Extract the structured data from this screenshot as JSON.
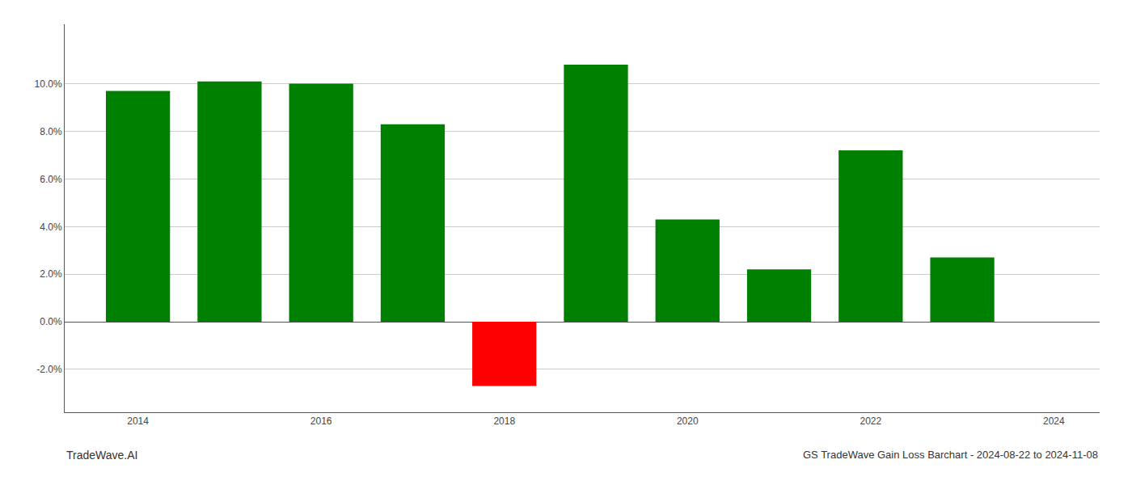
{
  "chart_data": {
    "type": "bar",
    "title": "GS TradeWave Gain Loss Barchart - 2024-08-22 to 2024-11-08",
    "annotations": [
      "TradeWave.AI"
    ],
    "x": [
      2014,
      2015,
      2016,
      2017,
      2018,
      2019,
      2020,
      2021,
      2022,
      2023
    ],
    "values": [
      0.097,
      0.101,
      0.1,
      0.083,
      -0.027,
      0.108,
      0.043,
      0.022,
      0.072,
      0.027
    ],
    "colors": [
      "#008000",
      "#008000",
      "#008000",
      "#008000",
      "#ff0000",
      "#008000",
      "#008000",
      "#008000",
      "#008000",
      "#008000"
    ],
    "xlim": [
      2013.2,
      2024.5
    ],
    "xticks": [
      2014,
      2016,
      2018,
      2020,
      2022,
      2024
    ],
    "ylim": [
      -0.038,
      0.125
    ],
    "yticks": [
      {
        "value": -0.02,
        "label": "-2.0%"
      },
      {
        "value": 0.0,
        "label": "0.0%"
      },
      {
        "value": 0.02,
        "label": "2.0%"
      },
      {
        "value": 0.04,
        "label": "4.0%"
      },
      {
        "value": 0.06,
        "label": "6.0%"
      },
      {
        "value": 0.08,
        "label": "8.0%"
      },
      {
        "value": 0.1,
        "label": "10.0%"
      }
    ],
    "grid": true
  }
}
